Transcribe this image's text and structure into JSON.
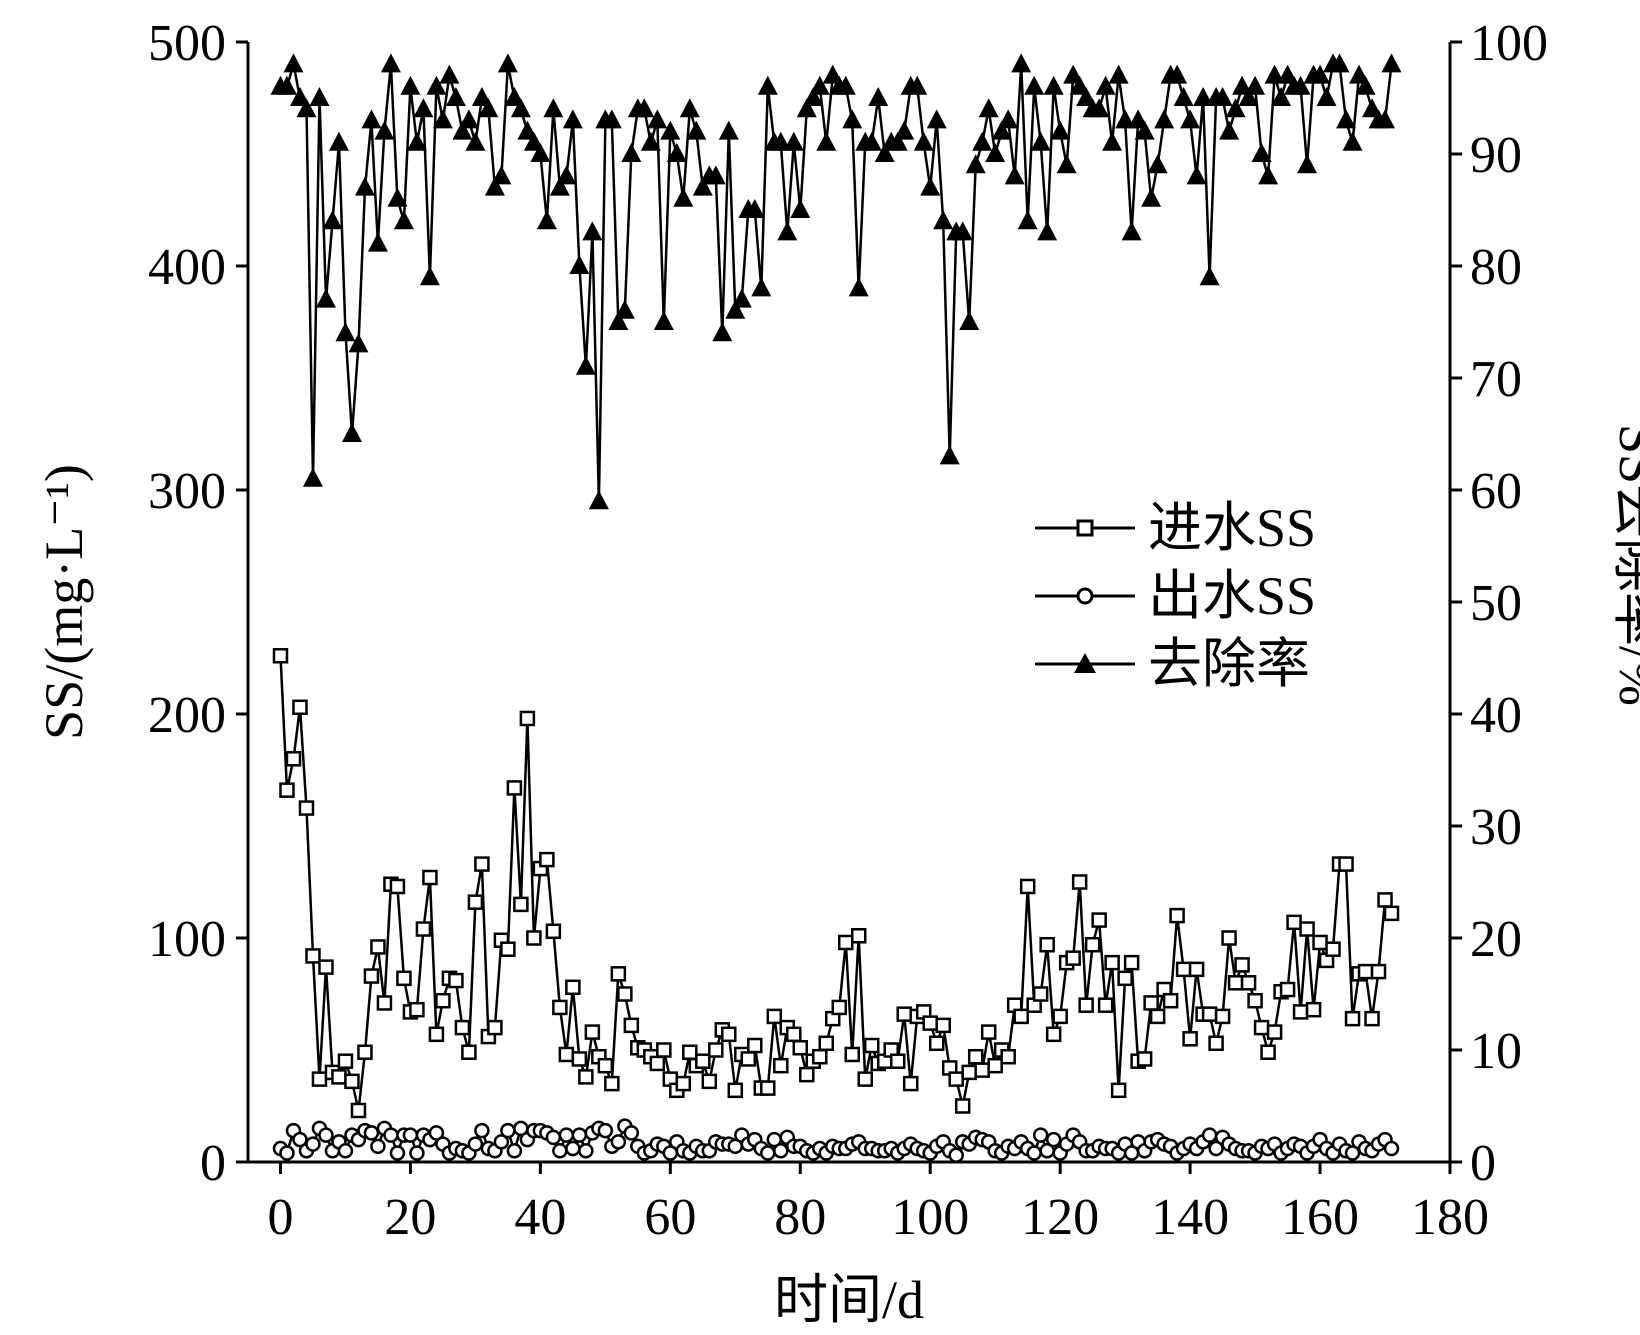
{
  "chart_data": {
    "type": "line",
    "title": "",
    "xlabel": "时间/d",
    "ylabel": "SS/(mg·L⁻¹)",
    "ylabel_right": "SS去除率/%",
    "xlim": [
      -5,
      180
    ],
    "ylim": [
      0,
      500
    ],
    "ylim_right": [
      0,
      100
    ],
    "x_ticks": [
      "0",
      "20",
      "40",
      "60",
      "80",
      "100",
      "120",
      "140",
      "160",
      "180"
    ],
    "y_ticks": [
      "0",
      "100",
      "200",
      "300",
      "400",
      "500"
    ],
    "y_ticks_right": [
      "0",
      "10",
      "20",
      "30",
      "40",
      "50",
      "60",
      "70",
      "80",
      "90",
      "100"
    ],
    "grid": false,
    "legend_position": "center-right",
    "colors": {
      "line": "#000000",
      "marker_fill_open": "#ffffff",
      "marker_fill_solid": "#000000"
    },
    "series": [
      {
        "name": "进水SS",
        "marker": "square-open",
        "axis": "left",
        "x": [
          0,
          1,
          2,
          3,
          4,
          5,
          6,
          7,
          8,
          9,
          10,
          11,
          12,
          13,
          14,
          15,
          16,
          17,
          18,
          19,
          20,
          21,
          22,
          23,
          24,
          25,
          26,
          27,
          28,
          29,
          30,
          31,
          32,
          33,
          34,
          35,
          36,
          37,
          38,
          39,
          40,
          41,
          42,
          43,
          44,
          45,
          46,
          47,
          48,
          49,
          50,
          51,
          52,
          53,
          54,
          55,
          56,
          57,
          58,
          59,
          60,
          61,
          62,
          63,
          64,
          65,
          66,
          67,
          68,
          69,
          70,
          71,
          72,
          73,
          74,
          75,
          76,
          77,
          78,
          79,
          80,
          81,
          82,
          83,
          84,
          85,
          86,
          87,
          88,
          89,
          90,
          91,
          92,
          93,
          94,
          95,
          96,
          97,
          98,
          99,
          100,
          101,
          102,
          103,
          104,
          105,
          106,
          107,
          108,
          109,
          110,
          111,
          112,
          113,
          114,
          115,
          116,
          117,
          118,
          119,
          120,
          121,
          122,
          123,
          124,
          125,
          126,
          127,
          128,
          129,
          130,
          131,
          132,
          133,
          134,
          135,
          136,
          137,
          138,
          139,
          140,
          141,
          142,
          143,
          144,
          145,
          146,
          147,
          148,
          149,
          150,
          151,
          152,
          153,
          154,
          155,
          156,
          157,
          158,
          159,
          160,
          161,
          162,
          163,
          164,
          165,
          166,
          167,
          168,
          169,
          170,
          171
        ],
        "values": [
          226,
          166,
          180,
          203,
          158,
          92,
          37,
          87,
          40,
          38,
          45,
          36,
          23,
          49,
          83,
          96,
          71,
          124,
          123,
          82,
          67,
          68,
          104,
          127,
          57,
          72,
          82,
          81,
          60,
          49,
          116,
          133,
          56,
          60,
          99,
          95,
          167,
          115,
          198,
          100,
          131,
          135,
          103,
          69,
          48,
          78,
          46,
          38,
          58,
          47,
          43,
          35,
          84,
          75,
          61,
          51,
          50,
          47,
          44,
          50,
          37,
          32,
          35,
          49,
          43,
          45,
          36,
          50,
          59,
          57,
          32,
          48,
          46,
          52,
          33,
          33,
          65,
          43,
          60,
          57,
          51,
          39,
          45,
          47,
          53,
          64,
          69,
          98,
          48,
          101,
          37,
          52,
          44,
          45,
          50,
          45,
          66,
          35,
          65,
          67,
          62,
          53,
          61,
          42,
          37,
          25,
          40,
          47,
          41,
          58,
          43,
          50,
          47,
          70,
          65,
          123,
          70,
          75,
          97,
          57,
          65,
          89,
          91,
          125,
          70,
          97,
          108,
          70,
          89,
          32,
          82,
          89,
          45,
          46,
          71,
          65,
          77,
          72,
          110,
          86,
          55,
          86,
          66,
          66,
          53,
          65,
          100,
          80,
          88,
          80,
          72,
          60,
          49,
          58,
          76,
          77,
          107,
          67,
          104,
          68,
          98,
          90,
          95,
          133,
          133,
          64,
          84,
          85,
          64,
          85,
          117,
          111
        ],
        "mark_labels": [
          "0",
          "1",
          "2",
          "3",
          "4",
          "5",
          "6",
          "7",
          "8",
          "9",
          "10",
          "11",
          "12",
          "13",
          "14",
          "15",
          "16",
          "17",
          "18",
          "19",
          "20",
          "21",
          "22",
          "23",
          "24",
          "25",
          "26",
          "27",
          "28",
          "29",
          "30",
          "31",
          "32",
          "33",
          "34",
          "35",
          "36",
          "37",
          "38",
          "39",
          "40",
          "41",
          "42",
          "43",
          "44",
          "45",
          "46",
          "47",
          "48",
          "49",
          "50",
          "51",
          "52",
          "53",
          "54",
          "55",
          "56",
          "57",
          "58",
          "59",
          "60",
          "61",
          "62",
          "63",
          "64",
          "65",
          "66",
          "67",
          "68",
          "69",
          "70",
          "71",
          "72",
          "73",
          "74",
          "75",
          "76",
          "77",
          "78",
          "79",
          "80",
          "81",
          "82",
          "83",
          "84",
          "85",
          "86",
          "87",
          "88",
          "89",
          "90",
          "91",
          "92",
          "93",
          "94",
          "95",
          "96",
          "97",
          "98",
          "99",
          "100",
          "101",
          "102",
          "103",
          "104",
          "105",
          "106",
          "107",
          "108",
          "109",
          "110",
          "111",
          "112",
          "113",
          "114",
          "115",
          "116",
          "117",
          "118",
          "119",
          "120",
          "121",
          "122",
          "123",
          "124",
          "125",
          "126",
          "127",
          "128",
          "129",
          "130",
          "131",
          "132",
          "133",
          "134",
          "135",
          "136",
          "137",
          "138",
          "139",
          "140",
          "141",
          "142",
          "143",
          "144",
          "145",
          "146",
          "147",
          "148",
          "149",
          "150",
          "151",
          "152",
          "153",
          "154",
          "155",
          "156",
          "157",
          "158",
          "159",
          "160",
          "161",
          "162",
          "163",
          "164",
          "165",
          "166",
          "167",
          "168",
          "169",
          "170",
          "171"
        ]
      },
      {
        "name": "出水SS",
        "marker": "circle-open",
        "axis": "left",
        "x": [
          0,
          1,
          2,
          3,
          4,
          5,
          6,
          7,
          8,
          9,
          10,
          11,
          12,
          13,
          14,
          15,
          16,
          17,
          18,
          19,
          20,
          21,
          22,
          23,
          24,
          25,
          26,
          27,
          28,
          29,
          30,
          31,
          32,
          33,
          34,
          35,
          36,
          37,
          38,
          39,
          40,
          41,
          42,
          43,
          44,
          45,
          46,
          47,
          48,
          49,
          50,
          51,
          52,
          53,
          54,
          55,
          56,
          57,
          58,
          59,
          60,
          61,
          62,
          63,
          64,
          65,
          66,
          67,
          68,
          69,
          70,
          71,
          72,
          73,
          74,
          75,
          76,
          77,
          78,
          79,
          80,
          81,
          82,
          83,
          84,
          85,
          86,
          87,
          88,
          89,
          90,
          91,
          92,
          93,
          94,
          95,
          96,
          97,
          98,
          99,
          100,
          101,
          102,
          103,
          104,
          105,
          106,
          107,
          108,
          109,
          110,
          111,
          112,
          113,
          114,
          115,
          116,
          117,
          118,
          119,
          120,
          121,
          122,
          123,
          124,
          125,
          126,
          127,
          128,
          129,
          130,
          131,
          132,
          133,
          134,
          135,
          136,
          137,
          138,
          139,
          140,
          141,
          142,
          143,
          144,
          145,
          146,
          147,
          148,
          149,
          150,
          151,
          152,
          153,
          154,
          155,
          156,
          157,
          158,
          159,
          160,
          161,
          162,
          163,
          164,
          165,
          166,
          167,
          168,
          169,
          170,
          171
        ],
        "values": [
          6,
          4,
          14,
          10,
          5,
          8,
          15,
          12,
          5,
          9,
          5,
          12,
          10,
          14,
          13,
          7,
          15,
          12,
          4,
          12,
          12,
          4,
          12,
          10,
          13,
          8,
          4,
          6,
          5,
          4,
          8,
          14,
          6,
          5,
          9,
          14,
          5,
          15,
          10,
          14,
          14,
          13,
          11,
          5,
          12,
          6,
          12,
          5,
          13,
          15,
          14,
          7,
          9,
          16,
          13,
          7,
          4,
          5,
          8,
          7,
          4,
          9,
          5,
          4,
          7,
          5,
          5,
          9,
          8,
          8,
          7,
          12,
          8,
          10,
          6,
          4,
          10,
          5,
          11,
          7,
          7,
          5,
          4,
          6,
          4,
          7,
          6,
          6,
          8,
          9,
          6,
          6,
          5,
          5,
          6,
          4,
          6,
          8,
          6,
          5,
          4,
          7,
          9,
          5,
          3,
          9,
          8,
          11,
          10,
          9,
          5,
          4,
          7,
          6,
          9,
          6,
          4,
          12,
          5,
          10,
          4,
          8,
          12,
          9,
          5,
          5,
          7,
          6,
          6,
          4,
          8,
          4,
          9,
          5,
          9,
          10,
          8,
          7,
          4,
          6,
          8,
          6,
          9,
          12,
          6,
          11,
          8,
          6,
          5,
          5,
          4,
          7,
          6,
          8,
          4,
          6,
          8,
          7,
          4,
          7,
          10,
          6,
          4,
          8,
          5,
          4,
          9,
          6,
          5,
          8,
          10,
          6
        ]
      },
      {
        "name": "去除率",
        "marker": "triangle-solid",
        "axis": "right",
        "x": [
          0,
          1,
          2,
          3,
          4,
          5,
          6,
          7,
          8,
          9,
          10,
          11,
          12,
          13,
          14,
          15,
          16,
          17,
          18,
          19,
          20,
          21,
          22,
          23,
          24,
          25,
          26,
          27,
          28,
          29,
          30,
          31,
          32,
          33,
          34,
          35,
          36,
          37,
          38,
          39,
          40,
          41,
          42,
          43,
          44,
          45,
          46,
          47,
          48,
          49,
          50,
          51,
          52,
          53,
          54,
          55,
          56,
          57,
          58,
          59,
          60,
          61,
          62,
          63,
          64,
          65,
          66,
          67,
          68,
          69,
          70,
          71,
          72,
          73,
          74,
          75,
          76,
          77,
          78,
          79,
          80,
          81,
          82,
          83,
          84,
          85,
          86,
          87,
          88,
          89,
          90,
          91,
          92,
          93,
          94,
          95,
          96,
          97,
          98,
          99,
          100,
          101,
          102,
          103,
          104,
          105,
          106,
          107,
          108,
          109,
          110,
          111,
          112,
          113,
          114,
          115,
          116,
          117,
          118,
          119,
          120,
          121,
          122,
          123,
          124,
          125,
          126,
          127,
          128,
          129,
          130,
          131,
          132,
          133,
          134,
          135,
          136,
          137,
          138,
          139,
          140,
          141,
          142,
          143,
          144,
          145,
          146,
          147,
          148,
          149,
          150,
          151,
          152,
          153,
          154,
          155,
          156,
          157,
          158,
          159,
          160,
          161,
          162,
          163,
          164,
          165,
          166,
          167,
          168,
          169,
          170,
          171
        ],
        "values": [
          96,
          96,
          98,
          95,
          94,
          61,
          95,
          77,
          84,
          91,
          74,
          65,
          73,
          87,
          93,
          82,
          92,
          98,
          86,
          84,
          96,
          91,
          94,
          79,
          96,
          93,
          97,
          95,
          92,
          93,
          91,
          95,
          94,
          87,
          88,
          98,
          95,
          94,
          92,
          91,
          90,
          84,
          94,
          87,
          88,
          93,
          80,
          71,
          83,
          59,
          93,
          93,
          75,
          76,
          90,
          94,
          94,
          91,
          93,
          75,
          92,
          90,
          86,
          94,
          92,
          87,
          88,
          88,
          74,
          92,
          76,
          77,
          85,
          85,
          78,
          96,
          91,
          91,
          83,
          91,
          85,
          94,
          95,
          96,
          91,
          97,
          96,
          96,
          93,
          78,
          91,
          91,
          95,
          90,
          91,
          91,
          92,
          96,
          96,
          91,
          87,
          93,
          84,
          63,
          83,
          83,
          75,
          89,
          91,
          94,
          90,
          92,
          93,
          88,
          98,
          84,
          96,
          91,
          83,
          96,
          92,
          89,
          97,
          96,
          95,
          94,
          94,
          96,
          91,
          97,
          93,
          83,
          93,
          92,
          86,
          89,
          93,
          97,
          97,
          95,
          93,
          88,
          95,
          79,
          95,
          95,
          92,
          94,
          96,
          95,
          96,
          90,
          88,
          97,
          95,
          97,
          96,
          96,
          89,
          97,
          97,
          95,
          98,
          98,
          93,
          91,
          97,
          96,
          94,
          93,
          93,
          98
        ]
      }
    ]
  }
}
